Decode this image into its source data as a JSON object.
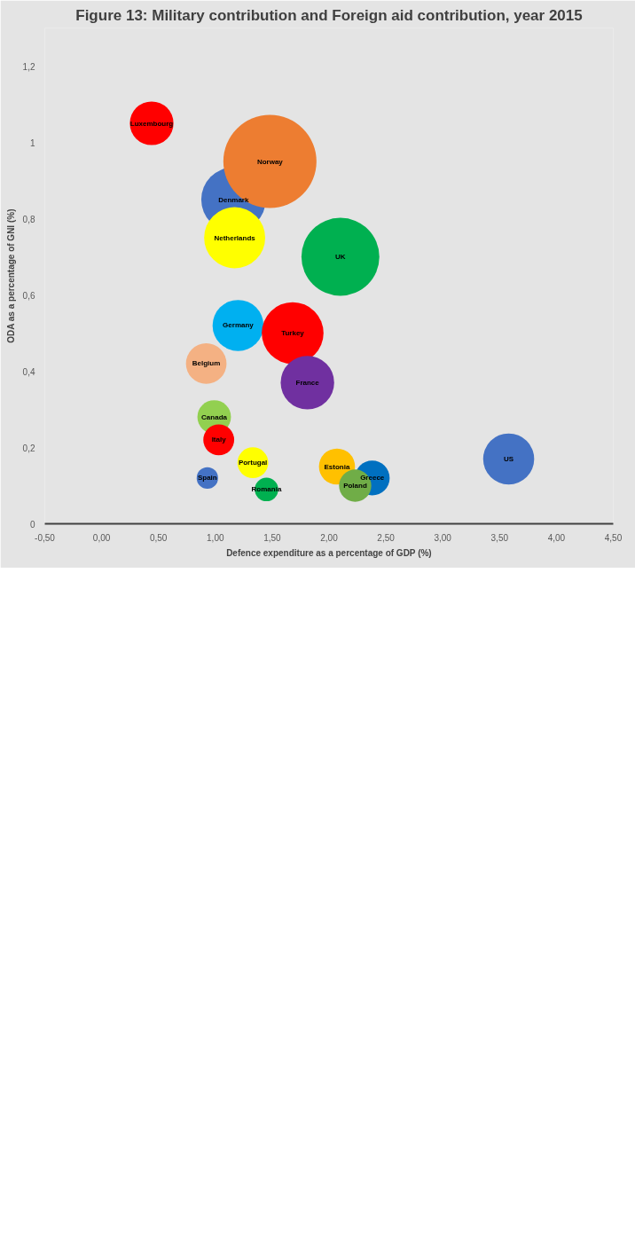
{
  "chart_data": {
    "type": "bubble",
    "title": "Figure 13: Military contribution and Foreign aid contribution, year 2015",
    "xlabel": "Defence expenditure as a percentage of GDP (%)",
    "ylabel": "ODA as a percentage of GNI (%)",
    "xlim": [
      -0.5,
      4.5
    ],
    "ylim": [
      0,
      1.3
    ],
    "xticks": [
      {
        "value": -0.5,
        "label": "-0,50"
      },
      {
        "value": 0,
        "label": "0,00"
      },
      {
        "value": 0.5,
        "label": "0,50"
      },
      {
        "value": 1,
        "label": "1,00"
      },
      {
        "value": 1.5,
        "label": "1,50"
      },
      {
        "value": 2,
        "label": "2,00"
      },
      {
        "value": 2.5,
        "label": "2,50"
      },
      {
        "value": 3,
        "label": "3,00"
      },
      {
        "value": 3.5,
        "label": "3,50"
      },
      {
        "value": 4,
        "label": "4,00"
      },
      {
        "value": 4.5,
        "label": "4,50"
      }
    ],
    "yticks": [
      0,
      {
        "value": 0.2,
        "label": "0,2"
      },
      {
        "value": 0.4,
        "label": "0,4"
      },
      {
        "value": 0.6,
        "label": "0,6"
      },
      {
        "value": 0.8,
        "label": "0,8"
      },
      1,
      {
        "value": 1.2,
        "label": "1,2"
      }
    ],
    "grid": false,
    "series": [
      {
        "name": "Luxembourg",
        "color": "#ff0000",
        "x": [
          0.44
        ],
        "values": [
          1.05
        ],
        "sizes": [
          0.22
        ]
      },
      {
        "name": "Denmark",
        "color": "#4472c4",
        "x": [
          1.16
        ],
        "values": [
          0.85
        ],
        "sizes": [
          0.48
        ]
      },
      {
        "name": "Norway",
        "color": "#ed7d31",
        "x": [
          1.48
        ],
        "values": [
          0.95
        ],
        "sizes": [
          1
        ]
      },
      {
        "name": "Netherlands",
        "color": "#ffff00",
        "x": [
          1.17
        ],
        "values": [
          0.75
        ],
        "sizes": [
          0.43
        ]
      },
      {
        "name": "Belgium",
        "color": "#f4b183",
        "x": [
          0.92
        ],
        "values": [
          0.42
        ],
        "sizes": [
          0.19
        ]
      },
      {
        "name": "Germany",
        "color": "#00b0f0",
        "x": [
          1.2
        ],
        "values": [
          0.52
        ],
        "sizes": [
          0.3
        ]
      },
      {
        "name": "Canada",
        "color": "#92d050",
        "x": [
          0.99
        ],
        "values": [
          0.28
        ],
        "sizes": [
          0.13
        ]
      },
      {
        "name": "Italy",
        "color": "#ff0000",
        "x": [
          1.03
        ],
        "values": [
          0.22
        ],
        "sizes": [
          0.11
        ]
      },
      {
        "name": "Spain",
        "color": "#4472c4",
        "x": [
          0.93
        ],
        "values": [
          0.12
        ],
        "sizes": [
          0.053
        ]
      },
      {
        "name": "Portugal",
        "color": "#ffff00",
        "x": [
          1.33
        ],
        "values": [
          0.16
        ],
        "sizes": [
          0.11
        ]
      },
      {
        "name": "Romania",
        "color": "#00b050",
        "x": [
          1.45
        ],
        "values": [
          0.09
        ],
        "sizes": [
          0.064
        ]
      },
      {
        "name": "Turkey",
        "color": "#ff0000",
        "x": [
          1.68
        ],
        "values": [
          0.5
        ],
        "sizes": [
          0.44
        ]
      },
      {
        "name": "France",
        "color": "#7030a0",
        "x": [
          1.81
        ],
        "values": [
          0.37
        ],
        "sizes": [
          0.33
        ]
      },
      {
        "name": "UK",
        "color": "#00b050",
        "x": [
          2.1
        ],
        "values": [
          0.7
        ],
        "sizes": [
          0.7
        ]
      },
      {
        "name": "Estonia",
        "color": "#ffc000",
        "x": [
          2.07
        ],
        "values": [
          0.15
        ],
        "sizes": [
          0.15
        ]
      },
      {
        "name": "Greece",
        "color": "#0070c0",
        "x": [
          2.38
        ],
        "values": [
          0.12
        ],
        "sizes": [
          0.14
        ]
      },
      {
        "name": "Poland",
        "color": "#70ad47",
        "x": [
          2.23
        ],
        "values": [
          0.1
        ],
        "sizes": [
          0.12
        ]
      },
      {
        "name": "US",
        "color": "#4472c4",
        "x": [
          3.58
        ],
        "values": [
          0.17
        ],
        "sizes": [
          0.3
        ]
      }
    ]
  }
}
